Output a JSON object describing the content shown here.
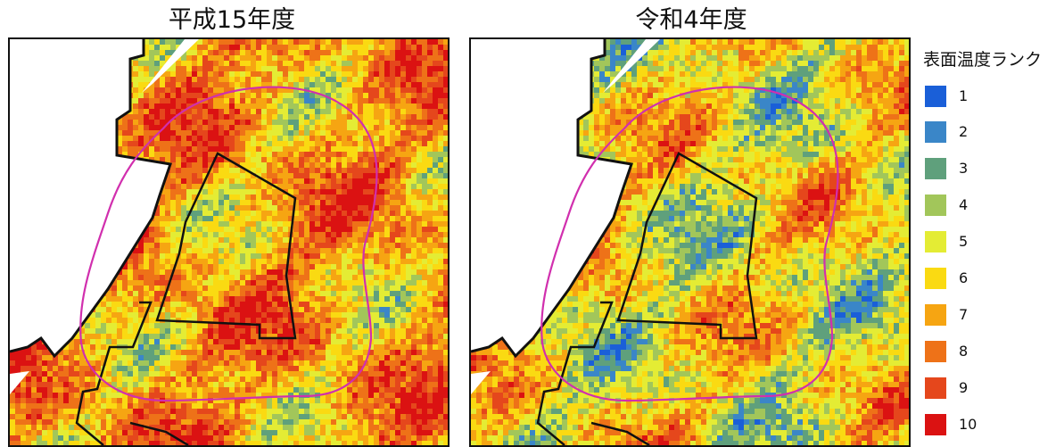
{
  "maps": [
    {
      "title": "平成15年度",
      "period": "h15"
    },
    {
      "title": "令和4年度",
      "period": "r4"
    }
  ],
  "legend": {
    "title": "表面温度ランク",
    "items": [
      {
        "label": "1",
        "color": "#1a5fd8"
      },
      {
        "label": "2",
        "color": "#3a86c8"
      },
      {
        "label": "3",
        "color": "#5fa07c"
      },
      {
        "label": "4",
        "color": "#a2c65a"
      },
      {
        "label": "5",
        "color": "#e4ec34"
      },
      {
        "label": "6",
        "color": "#fada12"
      },
      {
        "label": "7",
        "color": "#f6a512"
      },
      {
        "label": "8",
        "color": "#ee7218"
      },
      {
        "label": "9",
        "color": "#e5471c"
      },
      {
        "label": "10",
        "color": "#db1212"
      }
    ]
  },
  "boundary_colors": {
    "study_area": "#d12fae",
    "district": "#111111",
    "no_data": "#ffffff"
  }
}
